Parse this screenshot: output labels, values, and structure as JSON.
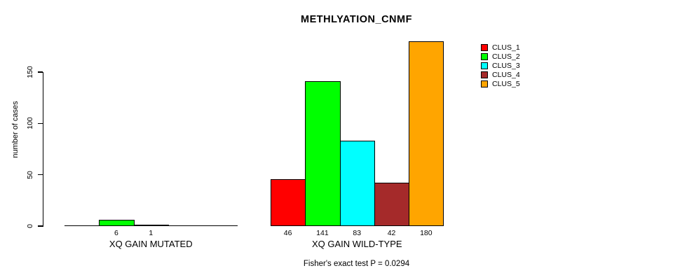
{
  "chart_data": {
    "type": "bar",
    "title": "METHLYATION_CNMF",
    "ylabel": "number of cases",
    "xlabel": "",
    "ylim": [
      0,
      180
    ],
    "yticks": [
      0,
      50,
      100,
      150
    ],
    "grid": false,
    "legend_position": "right",
    "legend": [
      {
        "label": "CLUS_1",
        "color": "#FF0000"
      },
      {
        "label": "CLUS_2",
        "color": "#00FF00"
      },
      {
        "label": "CLUS_3",
        "color": "#00FFFF"
      },
      {
        "label": "CLUS_4",
        "color": "#A52A2A"
      },
      {
        "label": "CLUS_5",
        "color": "#FFA500"
      }
    ],
    "groups": [
      {
        "label": "XQ GAIN MUTATED",
        "series": [
          "CLUS_1",
          "CLUS_2",
          "CLUS_3",
          "CLUS_4",
          "CLUS_5"
        ],
        "values": [
          0,
          6,
          1,
          0,
          0
        ],
        "bar_labels": [
          "",
          "6",
          "1",
          "",
          ""
        ]
      },
      {
        "label": "XQ GAIN WILD-TYPE",
        "series": [
          "CLUS_1",
          "CLUS_2",
          "CLUS_3",
          "CLUS_4",
          "CLUS_5"
        ],
        "values": [
          46,
          141,
          83,
          42,
          180
        ],
        "bar_labels": [
          "46",
          "141",
          "83",
          "42",
          "180"
        ]
      }
    ],
    "annotation": "Fisher's exact test P = 0.0294"
  },
  "colors": {
    "background": "#FFFFFF",
    "axis": "#000000",
    "bar_border": "#000000",
    "text": "#000000"
  }
}
